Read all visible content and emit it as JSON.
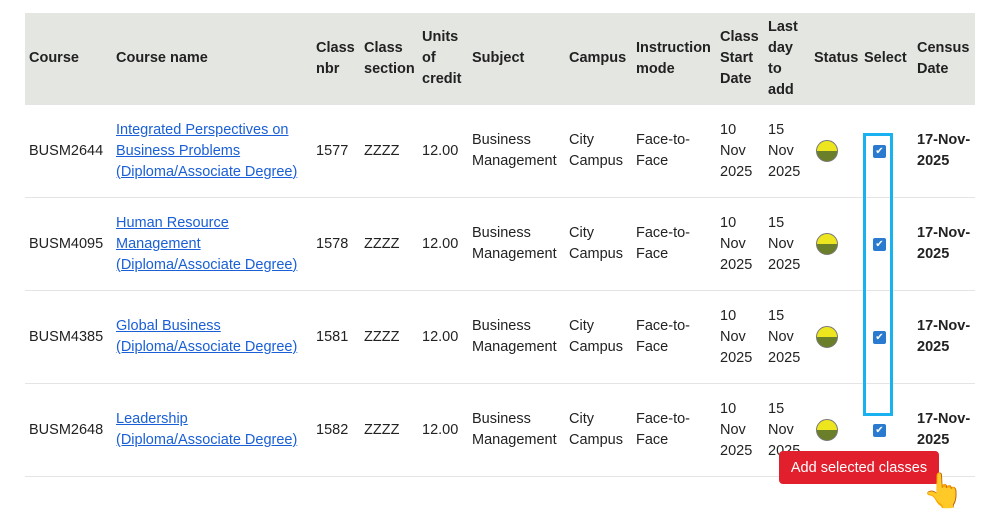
{
  "headers": [
    "Course",
    "Course name",
    "Class nbr",
    "Class section",
    "Units of credit",
    "Subject",
    "Campus",
    "Instruction mode",
    "Class Start Date",
    "Last day to add",
    "Status",
    "Select",
    "Census Date"
  ],
  "rows": [
    {
      "course": "BUSM2644",
      "name": "Integrated Perspectives on Business Problems (Diploma/Associate Degree)",
      "nbr": "1577",
      "section": "ZZZZ",
      "units": "12.00",
      "subject": "Business Management",
      "campus": "City Campus",
      "mode": "Face-to-Face",
      "start": "10 Nov 2025",
      "last": "15 Nov 2025",
      "status": "open",
      "selected": true,
      "census": "17-Nov-2025"
    },
    {
      "course": "BUSM4095",
      "name": "Human Resource Management (Diploma/Associate Degree)",
      "nbr": "1578",
      "section": "ZZZZ",
      "units": "12.00",
      "subject": "Business Management",
      "campus": "City Campus",
      "mode": "Face-to-Face",
      "start": "10 Nov 2025",
      "last": "15 Nov 2025",
      "status": "open",
      "selected": true,
      "census": "17-Nov-2025"
    },
    {
      "course": "BUSM4385",
      "name": "Global Business (Diploma/Associate Degree)",
      "nbr": "1581",
      "section": "ZZZZ",
      "units": "12.00",
      "subject": "Business Management",
      "campus": "City Campus",
      "mode": "Face-to-Face",
      "start": "10 Nov 2025",
      "last": "15 Nov 2025",
      "status": "open",
      "selected": true,
      "census": "17-Nov-2025"
    },
    {
      "course": "BUSM2648",
      "name": "Leadership (Diploma/Associate Degree)",
      "nbr": "1582",
      "section": "ZZZZ",
      "units": "12.00",
      "subject": "Business Management",
      "campus": "City Campus",
      "mode": "Face-to-Face",
      "start": "10 Nov 2025",
      "last": "15 Nov 2025",
      "status": "open",
      "selected": true,
      "census": "17-Nov-2025"
    }
  ],
  "add_button": "Add selected classes",
  "colors": {
    "accent": "#e21f2c",
    "highlight": "#19b1f0",
    "link": "#1a5fd6",
    "header_bg": "#e4e6e2"
  },
  "icons": {
    "status": "status-half-circle-icon",
    "cursor": "hand-pointer-icon"
  }
}
